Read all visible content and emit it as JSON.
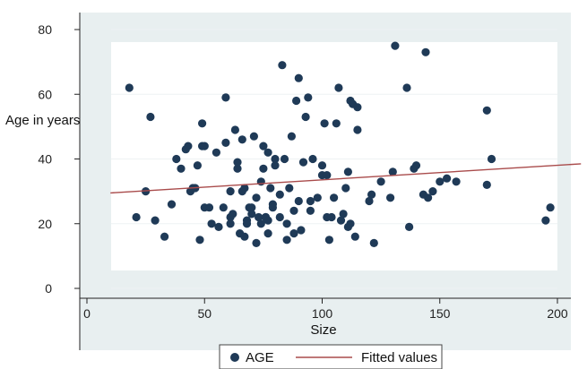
{
  "chart_data": {
    "type": "scatter",
    "title": "",
    "xlabel": "Size",
    "ylabel": "Age in years",
    "xlim": [
      0,
      210
    ],
    "ylim": [
      0,
      80
    ],
    "x_ticks": [
      0,
      50,
      100,
      150,
      200
    ],
    "y_ticks": [
      0,
      20,
      40,
      60,
      80
    ],
    "x_tick_labels": [
      "0",
      "50",
      "100",
      "150",
      "200"
    ],
    "y_tick_labels": [
      "0",
      "20",
      "40",
      "60",
      "80"
    ],
    "grid": true,
    "legend_position": "bottom",
    "colors": {
      "plot_background": "#e8eff0",
      "inner_background": "#ffffff",
      "marker": "#1f3a57",
      "fit_line": "#a94b4b",
      "gridline": "#eef2f3"
    },
    "series": [
      {
        "name": "AGE",
        "kind": "scatter",
        "points": [
          [
            18,
            62
          ],
          [
            21,
            22
          ],
          [
            25,
            30
          ],
          [
            27,
            53
          ],
          [
            29,
            21
          ],
          [
            33,
            16
          ],
          [
            36,
            26
          ],
          [
            38,
            40
          ],
          [
            40,
            37
          ],
          [
            42,
            43
          ],
          [
            43,
            44
          ],
          [
            44,
            30
          ],
          [
            45,
            31
          ],
          [
            46,
            31
          ],
          [
            47,
            38
          ],
          [
            48,
            15
          ],
          [
            49,
            44
          ],
          [
            49,
            51
          ],
          [
            50,
            44
          ],
          [
            50,
            25
          ],
          [
            52,
            25
          ],
          [
            53,
            20
          ],
          [
            55,
            42
          ],
          [
            56,
            19
          ],
          [
            58,
            25
          ],
          [
            59,
            45
          ],
          [
            59,
            59
          ],
          [
            61,
            30
          ],
          [
            61,
            20
          ],
          [
            61,
            22
          ],
          [
            62,
            23
          ],
          [
            63,
            49
          ],
          [
            64,
            37
          ],
          [
            64,
            39
          ],
          [
            65,
            17
          ],
          [
            66,
            46
          ],
          [
            66,
            30
          ],
          [
            67,
            16
          ],
          [
            67,
            31
          ],
          [
            68,
            21
          ],
          [
            68,
            20
          ],
          [
            69,
            25
          ],
          [
            70,
            25
          ],
          [
            70,
            23
          ],
          [
            71,
            47
          ],
          [
            72,
            14
          ],
          [
            72,
            28
          ],
          [
            73,
            22
          ],
          [
            74,
            20
          ],
          [
            74,
            33
          ],
          [
            75,
            44
          ],
          [
            75,
            37
          ],
          [
            76,
            22
          ],
          [
            76,
            22
          ],
          [
            77,
            17
          ],
          [
            77,
            21
          ],
          [
            77,
            42
          ],
          [
            78,
            31
          ],
          [
            79,
            26
          ],
          [
            79,
            25
          ],
          [
            80,
            38
          ],
          [
            80,
            40
          ],
          [
            82,
            22
          ],
          [
            82,
            29
          ],
          [
            83,
            69
          ],
          [
            84,
            40
          ],
          [
            85,
            15
          ],
          [
            85,
            20
          ],
          [
            86,
            31
          ],
          [
            87,
            47
          ],
          [
            88,
            24
          ],
          [
            88,
            17
          ],
          [
            89,
            58
          ],
          [
            90,
            65
          ],
          [
            90,
            27
          ],
          [
            91,
            18
          ],
          [
            92,
            39
          ],
          [
            93,
            53
          ],
          [
            94,
            59
          ],
          [
            95,
            27
          ],
          [
            95,
            24
          ],
          [
            96,
            40
          ],
          [
            98,
            28
          ],
          [
            100,
            35
          ],
          [
            100,
            38
          ],
          [
            101,
            51
          ],
          [
            102,
            22
          ],
          [
            102,
            35
          ],
          [
            103,
            15
          ],
          [
            104,
            22
          ],
          [
            105,
            28
          ],
          [
            106,
            51
          ],
          [
            107,
            62
          ],
          [
            108,
            21
          ],
          [
            109,
            23
          ],
          [
            110,
            31
          ],
          [
            111,
            19
          ],
          [
            111,
            36
          ],
          [
            112,
            58
          ],
          [
            112,
            20
          ],
          [
            113,
            57
          ],
          [
            114,
            16
          ],
          [
            115,
            56
          ],
          [
            115,
            49
          ],
          [
            120,
            27
          ],
          [
            121,
            29
          ],
          [
            122,
            14
          ],
          [
            125,
            33
          ],
          [
            129,
            28
          ],
          [
            130,
            36
          ],
          [
            131,
            75
          ],
          [
            136,
            62
          ],
          [
            137,
            19
          ],
          [
            139,
            37
          ],
          [
            140,
            38
          ],
          [
            143,
            29
          ],
          [
            144,
            73
          ],
          [
            145,
            28
          ],
          [
            147,
            30
          ],
          [
            150,
            33
          ],
          [
            153,
            34
          ],
          [
            157,
            33
          ],
          [
            170,
            55
          ],
          [
            170,
            32
          ],
          [
            172,
            40
          ],
          [
            195,
            21
          ],
          [
            197,
            25
          ]
        ]
      },
      {
        "name": "Fitted values",
        "kind": "line",
        "points": [
          [
            10,
            29.5
          ],
          [
            210,
            38.5
          ]
        ]
      }
    ]
  }
}
